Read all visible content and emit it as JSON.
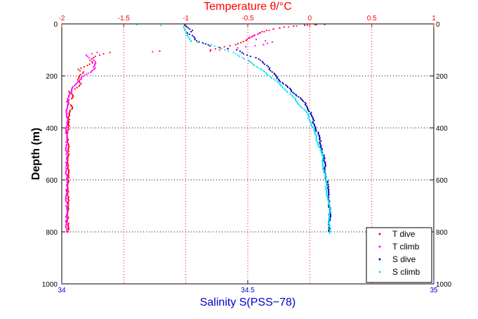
{
  "chart_data": {
    "type": "scatter",
    "top_axis": {
      "label": "Temperature θ/°C",
      "range": [
        -2,
        1
      ],
      "ticks": [
        -2,
        -1.5,
        -1,
        -0.5,
        0,
        0.5,
        1
      ],
      "tick_labels": [
        "-2",
        "-1.5",
        "-1",
        "-0.5",
        "0",
        "0.5",
        "1"
      ],
      "color": "#ff0000"
    },
    "bottom_axis": {
      "label": "Salinity S(PSS−78)",
      "range": [
        34,
        35
      ],
      "ticks": [
        34,
        34.5,
        35
      ],
      "tick_labels": [
        "34",
        "34.5",
        "35"
      ],
      "color": "#0000ff"
    },
    "left_axis": {
      "label": "Depth (m)",
      "range": [
        0,
        1000
      ],
      "reversed": true,
      "ticks": [
        0,
        200,
        400,
        600,
        800,
        1000
      ],
      "tick_labels": [
        "0",
        "200",
        "400",
        "600",
        "800",
        "1000"
      ]
    },
    "right_axis": {
      "range": [
        0,
        1000
      ],
      "ticks": [
        0,
        200,
        400,
        600,
        800,
        1000
      ],
      "tick_labels": [
        "0",
        "200",
        "400",
        "600",
        "800",
        "1000"
      ]
    },
    "grid": true,
    "legend_position": "bottom-right",
    "series": [
      {
        "name": "T dive",
        "color": "#ff0000",
        "axis": "temperature",
        "points": [
          [
            0.12,
            2
          ],
          [
            -0.05,
            5
          ],
          [
            -0.2,
            12
          ],
          [
            -0.3,
            20
          ],
          [
            -0.38,
            30
          ],
          [
            -0.45,
            45
          ],
          [
            -0.5,
            60
          ],
          [
            -0.6,
            80
          ],
          [
            -0.8,
            100
          ],
          [
            -1.62,
            110
          ],
          [
            -1.73,
            125
          ],
          [
            -1.78,
            140
          ],
          [
            -1.75,
            150
          ],
          [
            -1.8,
            160
          ],
          [
            -1.86,
            175
          ],
          [
            -1.83,
            185
          ],
          [
            -1.85,
            200
          ],
          [
            -1.88,
            215
          ],
          [
            -1.84,
            230
          ],
          [
            -1.88,
            245
          ],
          [
            -1.94,
            260
          ],
          [
            -1.91,
            280
          ],
          [
            -1.95,
            300
          ],
          [
            -1.92,
            320
          ],
          [
            -1.93,
            340
          ],
          [
            -1.95,
            360
          ],
          [
            -1.94,
            380
          ],
          [
            -1.95,
            400
          ],
          [
            -1.95,
            450
          ],
          [
            -1.95,
            500
          ],
          [
            -1.95,
            550
          ],
          [
            -1.95,
            600
          ],
          [
            -1.95,
            650
          ],
          [
            -1.95,
            700
          ],
          [
            -1.95,
            750
          ],
          [
            -1.95,
            800
          ]
        ]
      },
      {
        "name": "T climb",
        "color": "#ff00ff",
        "axis": "temperature",
        "points": [
          [
            0.05,
            2
          ],
          [
            -0.1,
            8
          ],
          [
            -0.3,
            20
          ],
          [
            -0.4,
            35
          ],
          [
            -0.5,
            55
          ],
          [
            -0.3,
            70
          ],
          [
            -0.38,
            80
          ],
          [
            -0.8,
            105
          ],
          [
            -1.72,
            110
          ],
          [
            -1.8,
            120
          ],
          [
            -1.76,
            135
          ],
          [
            -1.72,
            150
          ],
          [
            -1.74,
            170
          ],
          [
            -1.78,
            190
          ],
          [
            -1.85,
            210
          ],
          [
            -1.88,
            230
          ],
          [
            -1.92,
            250
          ],
          [
            -1.94,
            275
          ],
          [
            -1.95,
            300
          ],
          [
            -1.96,
            330
          ],
          [
            -1.95,
            360
          ],
          [
            -1.96,
            390
          ],
          [
            -1.96,
            420
          ],
          [
            -1.96,
            460
          ],
          [
            -1.96,
            500
          ],
          [
            -1.96,
            550
          ],
          [
            -1.96,
            600
          ],
          [
            -1.96,
            650
          ],
          [
            -1.96,
            700
          ],
          [
            -1.96,
            750
          ],
          [
            -1.96,
            800
          ]
        ]
      },
      {
        "name": "S dive",
        "color": "#0000b4",
        "axis": "salinity",
        "points": [
          [
            34.33,
            5
          ],
          [
            34.34,
            15
          ],
          [
            34.35,
            25
          ],
          [
            34.34,
            35
          ],
          [
            34.35,
            45
          ],
          [
            34.36,
            55
          ],
          [
            34.36,
            65
          ],
          [
            34.4,
            85
          ],
          [
            34.47,
            100
          ],
          [
            34.49,
            115
          ],
          [
            34.52,
            130
          ],
          [
            34.54,
            145
          ],
          [
            34.55,
            160
          ],
          [
            34.56,
            175
          ],
          [
            34.57,
            190
          ],
          [
            34.58,
            210
          ],
          [
            34.6,
            235
          ],
          [
            34.62,
            260
          ],
          [
            34.64,
            285
          ],
          [
            34.66,
            315
          ],
          [
            34.67,
            350
          ],
          [
            34.68,
            390
          ],
          [
            34.69,
            430
          ],
          [
            34.7,
            480
          ],
          [
            34.705,
            530
          ],
          [
            34.71,
            580
          ],
          [
            34.715,
            630
          ],
          [
            34.72,
            680
          ],
          [
            34.72,
            730
          ],
          [
            34.72,
            780
          ],
          [
            34.72,
            800
          ]
        ]
      },
      {
        "name": "S climb",
        "color": "#00e5ee",
        "axis": "salinity",
        "points": [
          [
            34.2,
            2
          ],
          [
            34.33,
            10
          ],
          [
            34.33,
            25
          ],
          [
            34.34,
            40
          ],
          [
            34.34,
            55
          ],
          [
            34.35,
            68
          ],
          [
            34.4,
            80
          ],
          [
            34.43,
            95
          ],
          [
            34.46,
            110
          ],
          [
            34.48,
            125
          ],
          [
            34.5,
            140
          ],
          [
            34.52,
            160
          ],
          [
            34.54,
            180
          ],
          [
            34.56,
            200
          ],
          [
            34.58,
            225
          ],
          [
            34.6,
            250
          ],
          [
            34.62,
            280
          ],
          [
            34.64,
            310
          ],
          [
            34.66,
            345
          ],
          [
            34.67,
            380
          ],
          [
            34.68,
            420
          ],
          [
            34.69,
            460
          ],
          [
            34.7,
            510
          ],
          [
            34.705,
            560
          ],
          [
            34.71,
            610
          ],
          [
            34.715,
            660
          ],
          [
            34.72,
            710
          ],
          [
            34.72,
            760
          ],
          [
            34.72,
            805
          ]
        ]
      }
    ]
  }
}
